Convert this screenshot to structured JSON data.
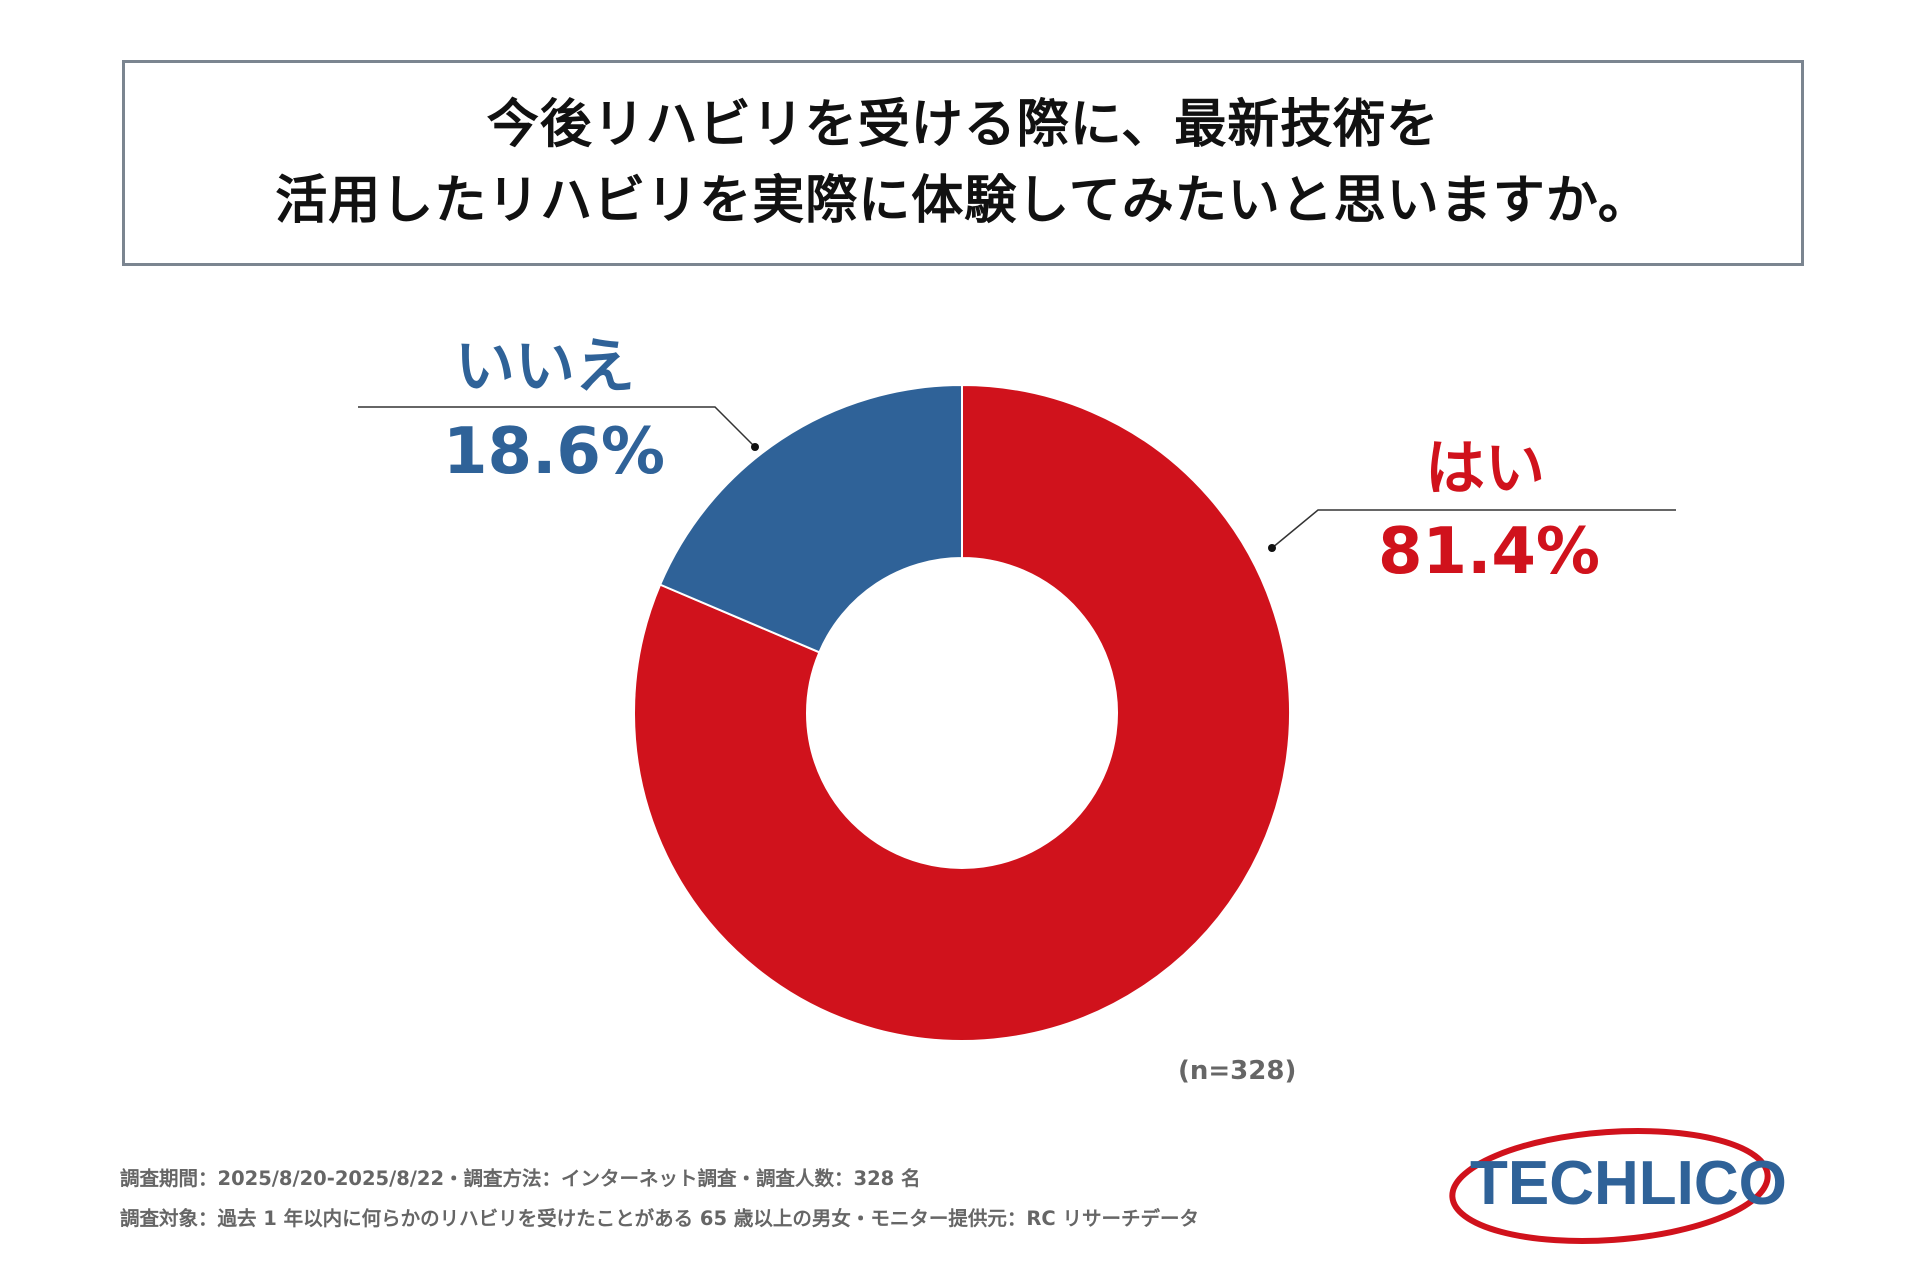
{
  "title": {
    "line1": "今後リハビリを受ける際に、最新技術を",
    "line2": "活用したリハビリを実際に体験してみたいと思いますか。"
  },
  "chart_data": {
    "type": "pie",
    "style": "donut",
    "title": "今後リハビリを受ける際に、最新技術を活用したリハビリを実際に体験してみたいと思いますか。",
    "slices": [
      {
        "name": "はい",
        "value": 81.4,
        "label": "81.4%",
        "color": "#d0121c"
      },
      {
        "name": "いいえ",
        "value": 18.6,
        "label": "18.6%",
        "color": "#2f6298"
      }
    ],
    "sample_size": "(n=328)"
  },
  "footer": {
    "line1": "調査期間：2025/8/20-2025/8/22・調査方法：インターネット調査・調査人数：328 名",
    "line2": "調査対象：過去 1 年以内に何らかのリハビリを受けたことがある 65 歳以上の男女・モニター提供元：RC リサーチデータ"
  },
  "logo": {
    "text": "TECHLICO",
    "color": "#2f6298",
    "ring_color": "#d0121c"
  }
}
